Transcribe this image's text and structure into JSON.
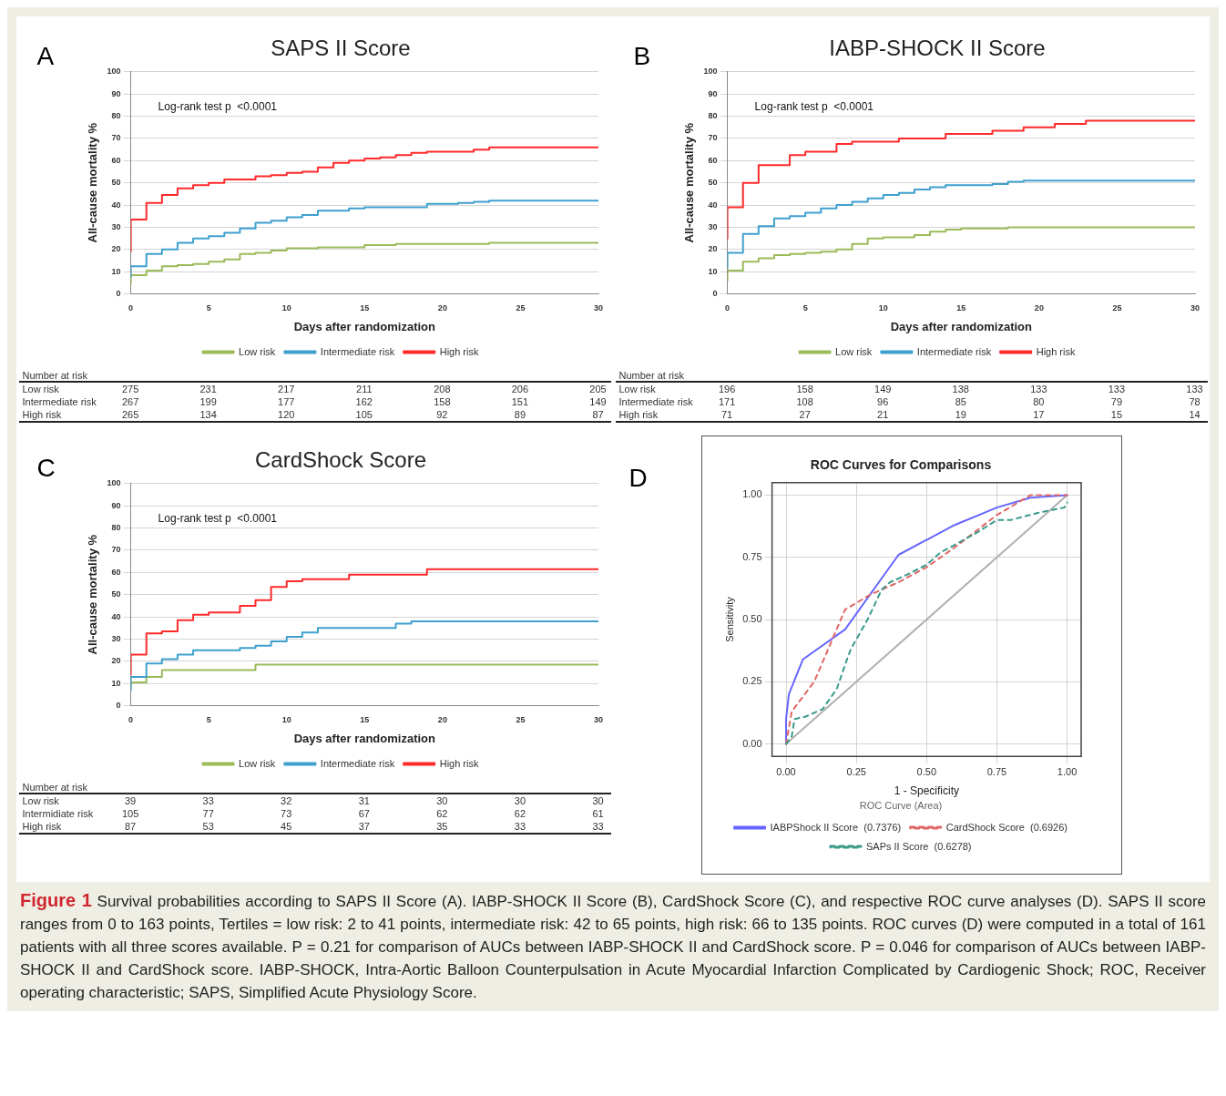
{
  "chart_data": [
    {
      "type": "step",
      "title": "SAPS II Score",
      "xlabel": "Days after randomization",
      "ylabel": "All-cause mortality %",
      "xlim": [
        0,
        30
      ],
      "xticks": [
        0,
        5,
        10,
        15,
        20,
        25,
        30
      ],
      "ylim": [
        0,
        100
      ],
      "yticks": [
        0,
        10,
        20,
        30,
        40,
        50,
        60,
        70,
        80,
        90,
        100
      ],
      "grid": "y",
      "legend": "bottom",
      "series": [
        {
          "name": "Low risk",
          "color": "#9bbb59",
          "x": [
            0,
            1,
            2,
            3,
            4,
            5,
            6,
            7,
            8,
            9,
            10,
            12,
            15,
            17,
            23,
            25,
            30
          ],
          "values": [
            4.5,
            8.5,
            10.5,
            12.5,
            13,
            13.5,
            14.5,
            15.5,
            18,
            18.5,
            19.5,
            20.5,
            21,
            22,
            22.5,
            23,
            23
          ]
        },
        {
          "name": "Intermediate risk",
          "color": "#3fa0cf",
          "x": [
            0,
            1,
            2,
            3,
            4,
            5,
            6,
            7,
            8,
            9,
            10,
            11,
            12,
            14,
            15,
            19,
            21,
            22,
            23,
            28,
            30
          ],
          "values": [
            7.5,
            12.5,
            18,
            20,
            23,
            25,
            26,
            27.5,
            29.5,
            32,
            33,
            34.5,
            35.5,
            37.5,
            38.5,
            39,
            40.5,
            41,
            41.5,
            42,
            42
          ]
        },
        {
          "name": "High risk",
          "color": "#ff2a2a",
          "x": [
            0,
            1,
            2,
            3,
            4,
            5,
            6,
            8,
            9,
            10,
            11,
            12,
            13,
            14,
            15,
            16,
            17,
            18,
            19,
            22,
            23,
            26,
            30
          ],
          "values": [
            19,
            33.5,
            41,
            44.5,
            47.5,
            49,
            50,
            51.5,
            53,
            53.5,
            54.5,
            55,
            57,
            59,
            60,
            61,
            61.5,
            62.5,
            63.5,
            64,
            65,
            66,
            66
          ]
        }
      ],
      "annotations": [
        "A",
        "Log-rank test p  <0.0001",
        "Number at risk",
        "Low risk",
        "275",
        "231",
        "217",
        "211",
        "208",
        "206",
        "205",
        "Intermediate risk",
        "267",
        "199",
        "177",
        "162",
        "158",
        "151",
        "149",
        "High risk",
        "265",
        "134",
        "120",
        "105",
        "92",
        "89",
        "87"
      ]
    },
    {
      "type": "step",
      "title": "IABP-SHOCK II Score",
      "xlabel": "Days after randomization",
      "ylabel": "All-cause mortality %",
      "xlim": [
        0,
        30
      ],
      "xticks": [
        0,
        5,
        10,
        15,
        20,
        25,
        30
      ],
      "ylim": [
        0,
        100
      ],
      "yticks": [
        0,
        10,
        20,
        30,
        40,
        50,
        60,
        70,
        80,
        90,
        100
      ],
      "grid": "y",
      "legend": "bottom",
      "series": [
        {
          "name": "Low risk",
          "color": "#9bbb59",
          "x": [
            0,
            1,
            2,
            3,
            4,
            5,
            6,
            7,
            8,
            9,
            10,
            12,
            13,
            14,
            15,
            18,
            19,
            30
          ],
          "values": [
            6,
            10.5,
            14.5,
            16,
            17.5,
            18,
            18.5,
            19,
            20,
            22.5,
            25,
            25.5,
            26.5,
            28,
            29,
            29.5,
            30,
            30
          ]
        },
        {
          "name": "Intermediate risk",
          "color": "#3fa0cf",
          "x": [
            0,
            1,
            2,
            3,
            4,
            5,
            6,
            7,
            8,
            9,
            10,
            11,
            12,
            13,
            14,
            17,
            18,
            19,
            24,
            30
          ],
          "values": [
            11.5,
            18.5,
            27,
            30.5,
            34,
            35,
            36.5,
            38.5,
            40,
            41.5,
            43,
            44.5,
            45.5,
            47,
            48,
            49,
            49.5,
            50.5,
            51,
            51
          ]
        },
        {
          "name": "High risk",
          "color": "#ff2a2a",
          "x": [
            0,
            1,
            2,
            4,
            5,
            7,
            8,
            11,
            14,
            17,
            19,
            21,
            23,
            26,
            30
          ],
          "values": [
            25,
            39,
            50,
            58,
            62.5,
            64,
            67.5,
            68.5,
            70,
            72,
            73.5,
            75,
            76.5,
            78,
            78
          ]
        }
      ],
      "annotations": [
        "B",
        "Log-rank test p  <0.0001",
        "Number at risk",
        "Low risk",
        "196",
        "158",
        "149",
        "138",
        "133",
        "133",
        "133",
        "Intermediate risk",
        "171",
        "108",
        "96",
        "85",
        "80",
        "79",
        "78",
        "High risk",
        "71",
        "27",
        "21",
        "19",
        "17",
        "15",
        "14"
      ]
    },
    {
      "type": "step",
      "title": "CardShock Score",
      "xlabel": "Days after randomization",
      "ylabel": "All-cause mortality %",
      "xlim": [
        0,
        30
      ],
      "xticks": [
        0,
        5,
        10,
        15,
        20,
        25,
        30
      ],
      "ylim": [
        0,
        100
      ],
      "yticks": [
        0,
        10,
        20,
        30,
        40,
        50,
        60,
        70,
        80,
        90,
        100
      ],
      "grid": "y",
      "legend": "bottom",
      "series": [
        {
          "name": "Low risk",
          "color": "#9bbb59",
          "x": [
            0,
            1,
            2,
            8,
            14,
            30
          ],
          "values": [
            8,
            10.5,
            13,
            16,
            18.5,
            18.5
          ]
        },
        {
          "name": "Intermediate risk",
          "color": "#3fa0cf",
          "x": [
            0,
            1,
            2,
            3,
            4,
            7,
            8,
            9,
            10,
            11,
            12,
            17,
            18,
            19,
            30
          ],
          "values": [
            7,
            13,
            19,
            21,
            23,
            25,
            26,
            27,
            29,
            31,
            33,
            35,
            37,
            38,
            38
          ]
        },
        {
          "name": "High risk",
          "color": "#ff2a2a",
          "x": [
            0,
            1,
            2,
            3,
            4,
            5,
            7,
            8,
            9,
            10,
            11,
            14,
            19,
            21,
            30
          ],
          "values": [
            14,
            23,
            32.5,
            33.5,
            38.5,
            41,
            42,
            45,
            47.5,
            53.5,
            56,
            57,
            59,
            61.5,
            61.5
          ]
        }
      ],
      "annotations": [
        "C",
        "Log-rank test p  <0.0001",
        "Number at risk",
        "Low risk",
        "39",
        "33",
        "32",
        "31",
        "30",
        "30",
        "30",
        "Intermidiate risk",
        "105",
        "77",
        "73",
        "67",
        "62",
        "62",
        "61",
        "High risk",
        "87",
        "53",
        "45",
        "37",
        "35",
        "33",
        "33"
      ]
    },
    {
      "type": "line",
      "title": "ROC Curves for Comparisons",
      "xlabel": "1 - Specificity",
      "ylabel": "Sensitivity",
      "xlim": [
        -0.05,
        1.05
      ],
      "ylim": [
        -0.05,
        1.05
      ],
      "xticks": [
        {
          "value": 0,
          "label": "0.00"
        },
        {
          "value": 0.25,
          "label": "0.25"
        },
        {
          "value": 0.5,
          "label": "0.50"
        },
        {
          "value": 0.75,
          "label": "0.75"
        },
        {
          "value": 1,
          "label": "1.00"
        }
      ],
      "yticks": [
        {
          "value": 0,
          "label": "0.00"
        },
        {
          "value": 0.25,
          "label": "0.25"
        },
        {
          "value": 0.5,
          "label": "0.50"
        },
        {
          "value": 0.75,
          "label": "0.75"
        },
        {
          "value": 1,
          "label": "1.00"
        }
      ],
      "grid": true,
      "legend": "bottom",
      "legend_title": "ROC Curve (Area)",
      "series": [
        {
          "color": "#b0b0b0",
          "line_style": "solid",
          "x": [
            0,
            1
          ],
          "values": [
            0,
            1
          ]
        },
        {
          "name": "IABPShock II Score  (0.7376)",
          "color": "#6666ff",
          "line_style": "solid",
          "x": [
            0,
            0,
            0.01,
            0.06,
            0.21,
            0.4,
            0.6,
            0.75,
            0.87,
            1
          ],
          "values": [
            0,
            0.1,
            0.2,
            0.34,
            0.46,
            0.76,
            0.88,
            0.95,
            0.99,
            1
          ]
        },
        {
          "name": "CardShock Score  (0.6926)",
          "color": "#e06666",
          "line_style": "dashed",
          "x": [
            0,
            0.02,
            0.1,
            0.21,
            0.3,
            0.4,
            0.5,
            0.6,
            0.75,
            0.87,
            1
          ],
          "values": [
            0,
            0.13,
            0.25,
            0.54,
            0.6,
            0.65,
            0.71,
            0.79,
            0.92,
            1,
            1
          ]
        },
        {
          "name": "SAPs II Score  (0.6278)",
          "color": "#3a9a8a",
          "line_style": "dashed",
          "x": [
            0,
            0.02,
            0.03,
            0.07,
            0.13,
            0.18,
            0.22,
            0.23,
            0.26,
            0.29,
            0.34,
            0.37,
            0.43,
            0.5,
            0.55,
            0.6,
            0.68,
            0.75,
            0.8,
            0.9,
            0.99,
            1
          ],
          "values": [
            0,
            0.03,
            0.1,
            0.11,
            0.14,
            0.22,
            0.35,
            0.38,
            0.44,
            0.5,
            0.62,
            0.65,
            0.68,
            0.72,
            0.77,
            0.8,
            0.85,
            0.9,
            0.9,
            0.93,
            0.95,
            0.97
          ]
        }
      ],
      "annotations": [
        "D"
      ]
    },
    {
      "type": "other",
      "title": "Figure 1",
      "annotations": [
        "Survival probabilities according to SAPS II Score (A). IABP-SHOCK II Score (B), CardShock Score (C), and respective ROC curve analyses (D). SAPS II score ranges from 0 to 163 points, Tertiles = low risk: 2 to 41 points, intermediate risk: 42 to 65 points, high risk: 66 to 135 points. ROC curves (D) were computed in a total of 161 patients with all three scores available. P = 0.21 for comparison of AUCs between IABP-SHOCK II and CardShock score. P = 0.046 for comparison of AUCs between IABP-SHOCK II and CardShock score. IABP-SHOCK, Intra-Aortic Balloon Counterpulsation in Acute Myocardial Infarction Complicated by Cardiogenic Shock; ROC, Receiver operating characteristic; SAPS, Simplified Acute Physiology Score."
      ]
    }
  ]
}
